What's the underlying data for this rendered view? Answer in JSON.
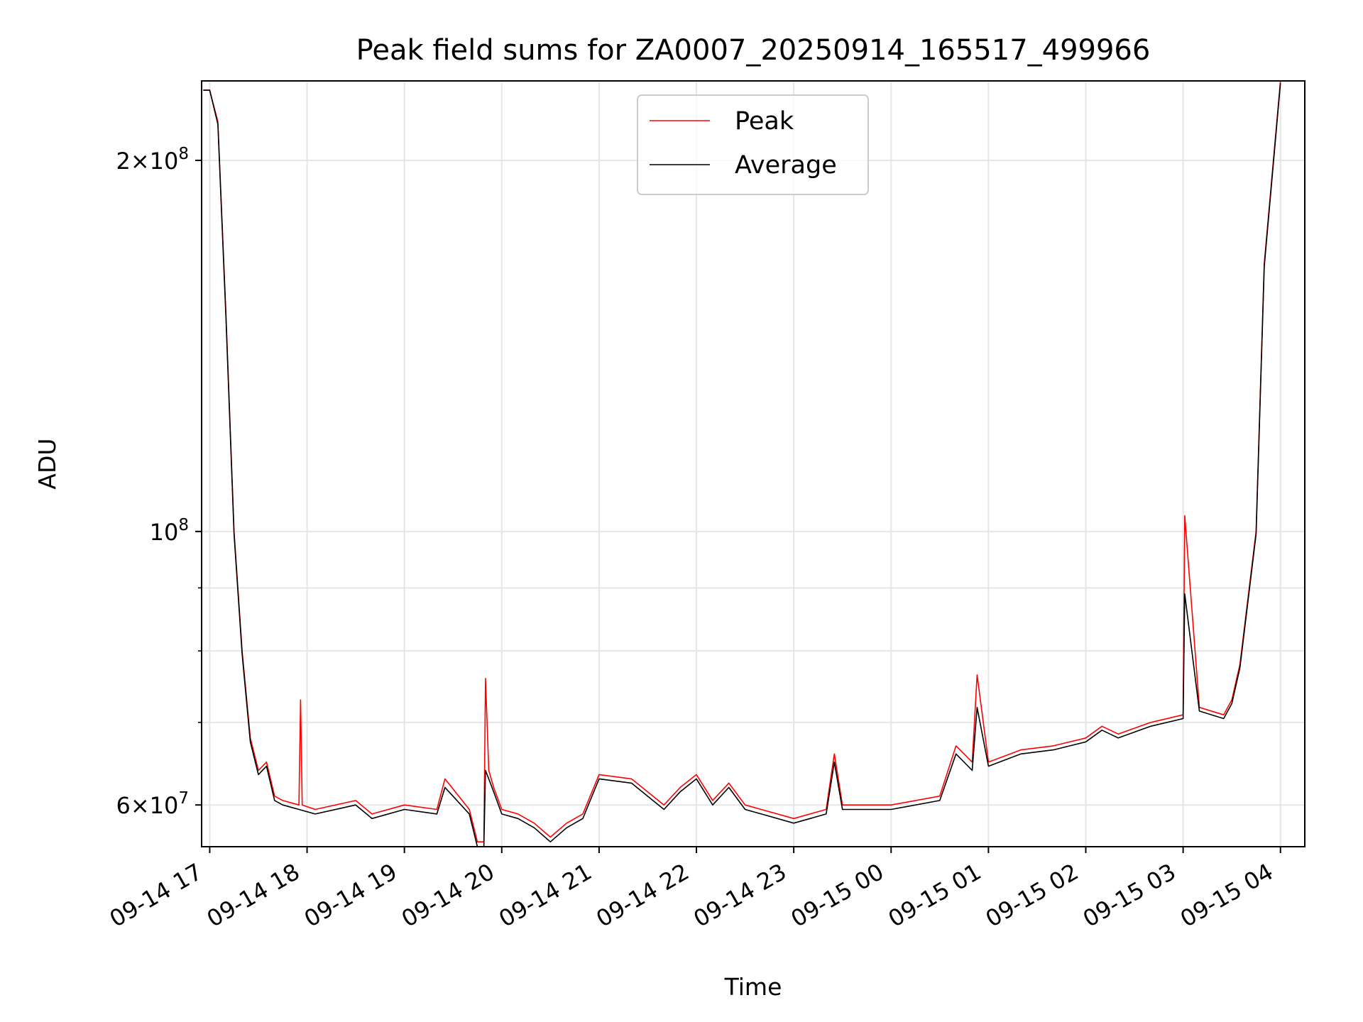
{
  "chart_data": {
    "type": "line",
    "title": "Peak field sums for ZA0007_20250914_165517_499966",
    "xlabel": "Time",
    "ylabel": "ADU",
    "yscale": "log",
    "ylim": [
      55500000,
      232000000
    ],
    "xlim": [
      "2025-09-14 16:55",
      "2025-09-15 04:15"
    ],
    "grid": true,
    "legend_position": "top-center",
    "x_ticks": [
      "09-14 17",
      "09-14 18",
      "09-14 19",
      "09-14 20",
      "09-14 21",
      "09-14 22",
      "09-14 23",
      "09-15 00",
      "09-15 01",
      "09-15 02",
      "09-15 03",
      "09-15 04"
    ],
    "y_ticks": [
      {
        "value": 60000000,
        "mantissa": "6",
        "exponent": "7"
      },
      {
        "value": 100000000,
        "mantissa": "",
        "exponent": "8"
      },
      {
        "value": 200000000,
        "mantissa": "2",
        "exponent": "8"
      }
    ],
    "y_minor_ticks": [
      70000000,
      80000000,
      90000000
    ],
    "series": [
      {
        "name": "Peak",
        "color": "#ff0000",
        "x": [
          "2025-09-14 16:56",
          "2025-09-14 17:00",
          "2025-09-14 17:05",
          "2025-09-14 17:10",
          "2025-09-14 17:15",
          "2025-09-14 17:20",
          "2025-09-14 17:25",
          "2025-09-14 17:30",
          "2025-09-14 17:35",
          "2025-09-14 17:40",
          "2025-09-14 17:45",
          "2025-09-14 17:55",
          "2025-09-14 17:56",
          "2025-09-14 17:57",
          "2025-09-14 18:05",
          "2025-09-14 18:30",
          "2025-09-14 18:40",
          "2025-09-14 19:00",
          "2025-09-14 19:20",
          "2025-09-14 19:25",
          "2025-09-14 19:40",
          "2025-09-14 19:45",
          "2025-09-14 19:49",
          "2025-09-14 19:50",
          "2025-09-14 19:52",
          "2025-09-14 19:55",
          "2025-09-14 20:00",
          "2025-09-14 20:10",
          "2025-09-14 20:20",
          "2025-09-14 20:30",
          "2025-09-14 20:40",
          "2025-09-14 20:50",
          "2025-09-14 21:00",
          "2025-09-14 21:20",
          "2025-09-14 21:40",
          "2025-09-14 21:50",
          "2025-09-14 22:00",
          "2025-09-14 22:10",
          "2025-09-14 22:20",
          "2025-09-14 22:30",
          "2025-09-14 22:40",
          "2025-09-14 23:00",
          "2025-09-14 23:20",
          "2025-09-14 23:25",
          "2025-09-14 23:30",
          "2025-09-15 00:00",
          "2025-09-15 00:30",
          "2025-09-15 00:40",
          "2025-09-15 00:50",
          "2025-09-15 00:53",
          "2025-09-15 01:00",
          "2025-09-15 01:20",
          "2025-09-15 01:40",
          "2025-09-15 02:00",
          "2025-09-15 02:10",
          "2025-09-15 02:20",
          "2025-09-15 02:40",
          "2025-09-15 03:00",
          "2025-09-15 03:01",
          "2025-09-15 03:10",
          "2025-09-15 03:25",
          "2025-09-15 03:30",
          "2025-09-15 03:35",
          "2025-09-15 03:45",
          "2025-09-15 03:50",
          "2025-09-15 04:00"
        ],
        "values": [
          228000000,
          228000000,
          215000000,
          150000000,
          100000000,
          80000000,
          68000000,
          64000000,
          65000000,
          61000000,
          60500000,
          60000000,
          73000000,
          60000000,
          59500000,
          60500000,
          59000000,
          60000000,
          59500000,
          63000000,
          59500000,
          56000000,
          56000000,
          76000000,
          64000000,
          62000000,
          59500000,
          59000000,
          58000000,
          56500000,
          58000000,
          59000000,
          63500000,
          63000000,
          60000000,
          62000000,
          63500000,
          60500000,
          62500000,
          60000000,
          59500000,
          58500000,
          59500000,
          66000000,
          60000000,
          60000000,
          61000000,
          67000000,
          65000000,
          76500000,
          65000000,
          66500000,
          67000000,
          68000000,
          69500000,
          68500000,
          70000000,
          71000000,
          103000000,
          72000000,
          71000000,
          73000000,
          78000000,
          100000000,
          165000000,
          232000000
        ]
      },
      {
        "name": "Average",
        "color": "#000000",
        "x": [
          "2025-09-14 16:56",
          "2025-09-14 17:00",
          "2025-09-14 17:05",
          "2025-09-14 17:10",
          "2025-09-14 17:15",
          "2025-09-14 17:20",
          "2025-09-14 17:25",
          "2025-09-14 17:30",
          "2025-09-14 17:35",
          "2025-09-14 17:40",
          "2025-09-14 17:45",
          "2025-09-14 17:55",
          "2025-09-14 18:05",
          "2025-09-14 18:30",
          "2025-09-14 18:40",
          "2025-09-14 19:00",
          "2025-09-14 19:20",
          "2025-09-14 19:25",
          "2025-09-14 19:40",
          "2025-09-14 19:45",
          "2025-09-14 19:49",
          "2025-09-14 19:50",
          "2025-09-14 19:52",
          "2025-09-14 19:55",
          "2025-09-14 20:00",
          "2025-09-14 20:10",
          "2025-09-14 20:20",
          "2025-09-14 20:30",
          "2025-09-14 20:40",
          "2025-09-14 20:50",
          "2025-09-14 21:00",
          "2025-09-14 21:20",
          "2025-09-14 21:40",
          "2025-09-14 21:50",
          "2025-09-14 22:00",
          "2025-09-14 22:10",
          "2025-09-14 22:20",
          "2025-09-14 22:30",
          "2025-09-14 22:40",
          "2025-09-14 23:00",
          "2025-09-14 23:20",
          "2025-09-14 23:25",
          "2025-09-14 23:30",
          "2025-09-15 00:00",
          "2025-09-15 00:30",
          "2025-09-15 00:40",
          "2025-09-15 00:50",
          "2025-09-15 00:53",
          "2025-09-15 01:00",
          "2025-09-15 01:20",
          "2025-09-15 01:40",
          "2025-09-15 02:00",
          "2025-09-15 02:10",
          "2025-09-15 02:20",
          "2025-09-15 02:40",
          "2025-09-15 03:00",
          "2025-09-15 03:01",
          "2025-09-15 03:10",
          "2025-09-15 03:25",
          "2025-09-15 03:30",
          "2025-09-15 03:35",
          "2025-09-15 03:45",
          "2025-09-15 03:50",
          "2025-09-15 04:00"
        ],
        "values": [
          228000000,
          228000000,
          214000000,
          149000000,
          99500000,
          79500000,
          67500000,
          63500000,
          64500000,
          60500000,
          60000000,
          59500000,
          59000000,
          60000000,
          58500000,
          59500000,
          59000000,
          62000000,
          59000000,
          55500000,
          55500000,
          64000000,
          63000000,
          61500000,
          59000000,
          58500000,
          57500000,
          56000000,
          57500000,
          58500000,
          63000000,
          62500000,
          59500000,
          61500000,
          63000000,
          60000000,
          62000000,
          59500000,
          59000000,
          58000000,
          59000000,
          65000000,
          59500000,
          59500000,
          60500000,
          66000000,
          64000000,
          72000000,
          64500000,
          66000000,
          66500000,
          67500000,
          69000000,
          68000000,
          69500000,
          70500000,
          89000000,
          71500000,
          70500000,
          72500000,
          77500000,
          99500000,
          164000000,
          231000000
        ]
      }
    ]
  }
}
